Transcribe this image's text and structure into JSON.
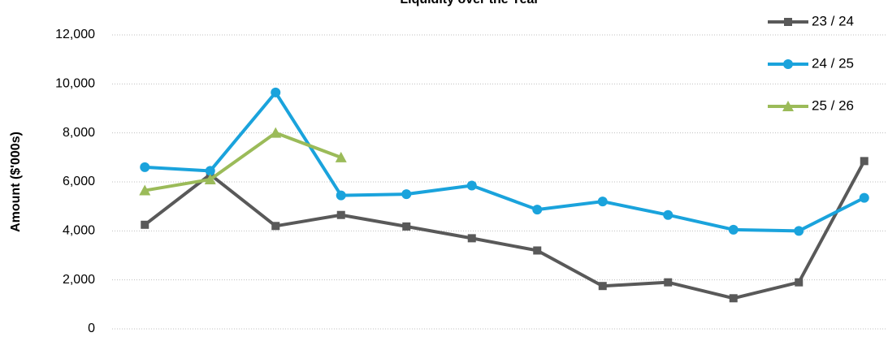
{
  "chart_data": {
    "type": "line",
    "title": "Liquidity over the Year",
    "y_label": "Amount ($'000s)",
    "categories": [
      null,
      null,
      null,
      null,
      null,
      null,
      null,
      null,
      null,
      null,
      null,
      null
    ],
    "series": [
      {
        "name": "23 / 24",
        "color": "#595959",
        "marker": "square",
        "values": [
          4250,
          6300,
          4200,
          4650,
          4180,
          3700,
          3200,
          1750,
          1900,
          1250,
          1900,
          6850
        ]
      },
      {
        "name": "24 / 25",
        "color": "#1aa3dc",
        "marker": "circle",
        "values": [
          6600,
          6450,
          9650,
          5450,
          5500,
          5850,
          4870,
          5200,
          4650,
          4050,
          4000,
          5350
        ]
      },
      {
        "name": "25 / 26",
        "color": "#9bbb59",
        "marker": "triangle",
        "values": [
          5650,
          6100,
          8000,
          7000,
          null,
          null,
          null,
          null,
          null,
          null,
          null,
          null
        ]
      }
    ],
    "ylim": [
      0,
      12000
    ],
    "yticks": [
      0,
      {
        "value": 2000,
        "label": "2,000"
      },
      {
        "value": 4000,
        "label": "4,000"
      },
      {
        "value": 6000,
        "label": "6,000"
      },
      {
        "value": 8000,
        "label": "8,000"
      },
      {
        "value": 10000,
        "label": "10,000"
      },
      {
        "value": 12000,
        "label": "12,000"
      }
    ],
    "grid": true,
    "legend": "top-right"
  }
}
